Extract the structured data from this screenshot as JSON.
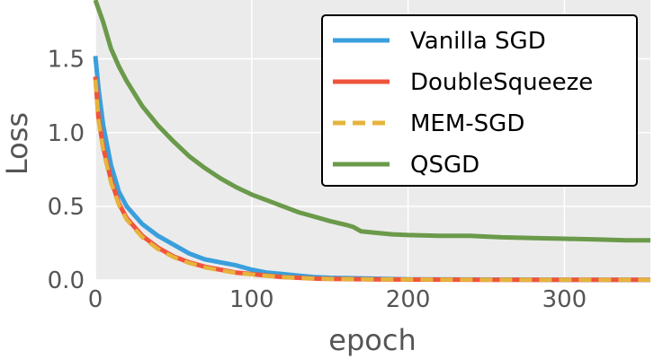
{
  "chart_data": {
    "type": "line",
    "title": "",
    "xlabel": "epoch",
    "ylabel": "Loss",
    "xlim": [
      0,
      355
    ],
    "ylim": [
      0,
      1.9
    ],
    "xticks": [
      0,
      100,
      200,
      300
    ],
    "xtick_labels": [
      "0",
      "100",
      "200",
      "300"
    ],
    "yticks": [
      0.0,
      0.5,
      1.0,
      1.5
    ],
    "ytick_labels": [
      "0.0",
      "0.5",
      "1.0",
      "1.5"
    ],
    "grid": true,
    "legend_position": "top-right",
    "background": "#ebebeb",
    "series": [
      {
        "name": "Vanilla SGD",
        "color": "#3a9fdc",
        "dash": "solid",
        "x": [
          0,
          2,
          5,
          10,
          15,
          20,
          30,
          40,
          50,
          60,
          70,
          80,
          90,
          100,
          110,
          120,
          130,
          140,
          150,
          175,
          200,
          250,
          300,
          355
        ],
        "y": [
          1.52,
          1.3,
          1.05,
          0.78,
          0.6,
          0.5,
          0.38,
          0.3,
          0.24,
          0.18,
          0.14,
          0.12,
          0.1,
          0.07,
          0.05,
          0.04,
          0.03,
          0.02,
          0.015,
          0.01,
          0.005,
          0.003,
          0.002,
          0.002
        ]
      },
      {
        "name": "DoubleSqueeze",
        "color": "#f0543c",
        "dash": "solid",
        "x": [
          0,
          2,
          5,
          10,
          15,
          20,
          30,
          40,
          50,
          60,
          70,
          80,
          90,
          100,
          110,
          120,
          130,
          140,
          150,
          175,
          200,
          250,
          300,
          355
        ],
        "y": [
          1.38,
          1.1,
          0.9,
          0.68,
          0.52,
          0.42,
          0.3,
          0.22,
          0.16,
          0.12,
          0.09,
          0.07,
          0.05,
          0.04,
          0.03,
          0.02,
          0.015,
          0.01,
          0.008,
          0.005,
          0.003,
          0.002,
          0.001,
          0.001
        ]
      },
      {
        "name": "MEM-SGD",
        "color": "#e6b43c",
        "dash": "dashed",
        "x": [
          0,
          2,
          5,
          10,
          15,
          20,
          30,
          40,
          50,
          60,
          70,
          80,
          90,
          100,
          110,
          120,
          130,
          140,
          150,
          175,
          200,
          250,
          300,
          355
        ],
        "y": [
          1.36,
          1.08,
          0.88,
          0.66,
          0.51,
          0.41,
          0.29,
          0.21,
          0.155,
          0.115,
          0.085,
          0.065,
          0.048,
          0.038,
          0.028,
          0.02,
          0.014,
          0.01,
          0.008,
          0.005,
          0.003,
          0.002,
          0.001,
          0.001
        ]
      },
      {
        "name": "QSGD",
        "color": "#6a9a4a",
        "dash": "solid",
        "x": [
          0,
          5,
          10,
          15,
          20,
          30,
          40,
          50,
          60,
          70,
          80,
          90,
          100,
          110,
          120,
          130,
          140,
          150,
          160,
          165,
          170,
          180,
          190,
          200,
          220,
          240,
          250,
          260,
          280,
          300,
          320,
          340,
          355
        ],
        "y": [
          1.9,
          1.75,
          1.57,
          1.45,
          1.35,
          1.18,
          1.05,
          0.94,
          0.84,
          0.76,
          0.69,
          0.63,
          0.58,
          0.54,
          0.5,
          0.46,
          0.43,
          0.4,
          0.375,
          0.36,
          0.33,
          0.32,
          0.31,
          0.305,
          0.3,
          0.3,
          0.295,
          0.29,
          0.285,
          0.28,
          0.275,
          0.27,
          0.27
        ]
      }
    ]
  }
}
